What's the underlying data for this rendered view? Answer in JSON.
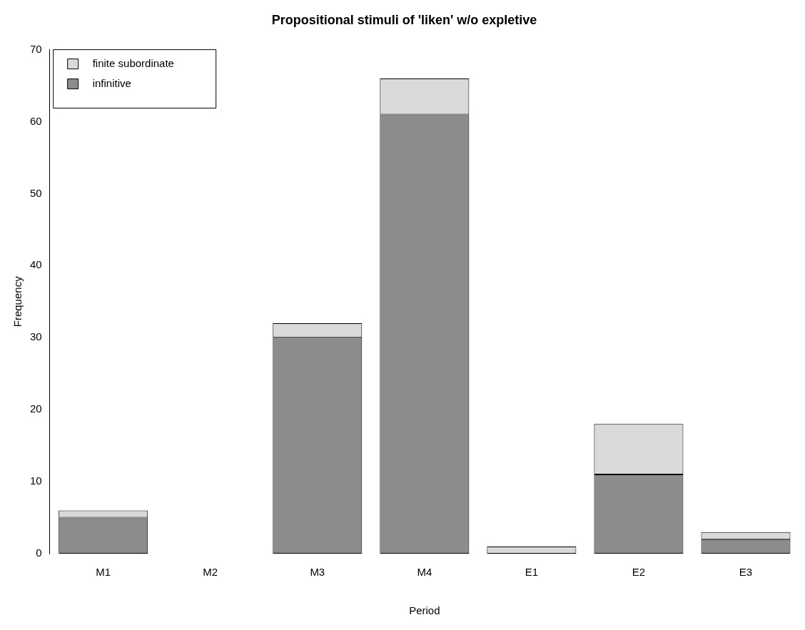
{
  "chart_data": {
    "type": "bar",
    "title": "Propositional stimuli of 'liken' w/o expletive",
    "xlabel": "Period",
    "ylabel": "Frequency",
    "categories": [
      "M1",
      "M2",
      "M3",
      "M4",
      "E1",
      "E2",
      "E3"
    ],
    "series": [
      {
        "name": "infinitive",
        "color": "#8c8c8c",
        "values": [
          5,
          0,
          30,
          61,
          0,
          11,
          2
        ]
      },
      {
        "name": "finite subordinate",
        "color": "#d9d9d9",
        "values": [
          1,
          0,
          2,
          5,
          1,
          7,
          1
        ]
      }
    ],
    "stacked": true,
    "ylim": [
      0,
      70
    ],
    "yticks": [
      0,
      10,
      20,
      30,
      40,
      50,
      60,
      70
    ],
    "grid": false,
    "legend": "top left"
  }
}
